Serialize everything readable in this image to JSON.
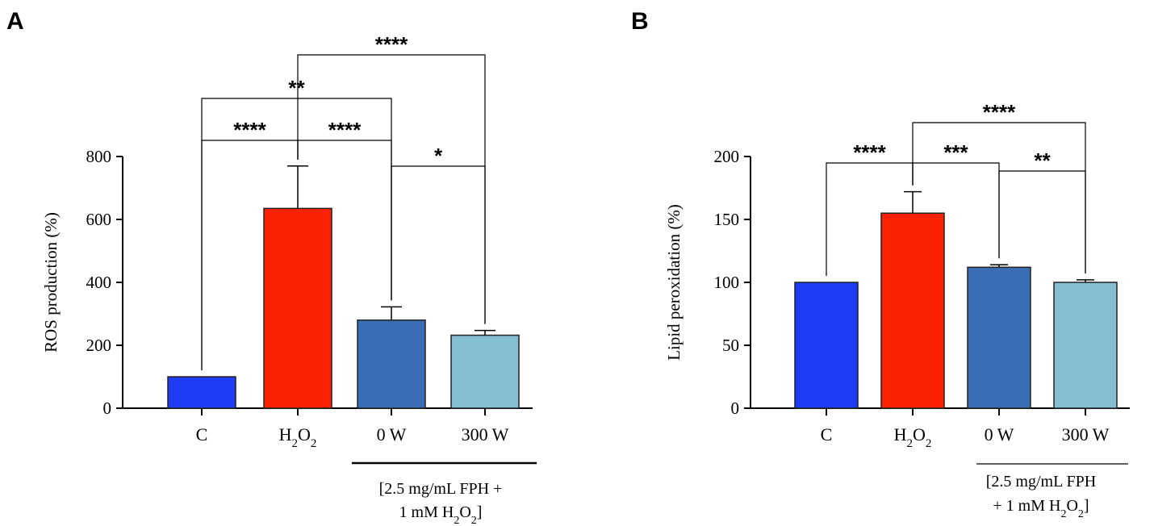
{
  "chart_data": [
    {
      "panel": "A",
      "type": "bar",
      "ylabel": "ROS production (%)",
      "ylim": [
        0,
        800
      ],
      "yticks": [
        0,
        200,
        400,
        600,
        800
      ],
      "categories": [
        {
          "label": "C",
          "main": "C",
          "sub1": "",
          "mid": "",
          "sub2": ""
        },
        {
          "label": "H2O2",
          "main": "H",
          "sub1": "2",
          "mid": "O",
          "sub2": "2"
        },
        {
          "label": "0 W",
          "main": "0 W",
          "sub1": "",
          "mid": "",
          "sub2": ""
        },
        {
          "label": "300 W",
          "main": "300 W",
          "sub1": "",
          "mid": "",
          "sub2": ""
        }
      ],
      "values": [
        100,
        635,
        280,
        232
      ],
      "errors": [
        0,
        135,
        42,
        15
      ],
      "colors": [
        "#1f3cf5",
        "#fa2200",
        "#3b6db5",
        "#85bdd2"
      ],
      "group_note": {
        "line1": "[2.5 mg/mL FPH +",
        "line2_pre": "1 mM H",
        "line2_sub": "2",
        "line2_mid": "O",
        "line2_sub2": "2",
        "line2_post": "]"
      },
      "significance": [
        {
          "from": 0,
          "to": 1,
          "label": "****"
        },
        {
          "from": 1,
          "to": 2,
          "label": "****"
        },
        {
          "from": 0,
          "to": 2,
          "label": "**"
        },
        {
          "from": 2,
          "to": 3,
          "label": "*"
        },
        {
          "from": 1,
          "to": 3,
          "label": "****"
        }
      ]
    },
    {
      "panel": "B",
      "type": "bar",
      "ylabel": "Lipid peroxidation (%)",
      "ylim": [
        0,
        200
      ],
      "yticks": [
        0,
        50,
        100,
        150,
        200
      ],
      "categories": [
        {
          "label": "C",
          "main": "C",
          "sub1": "",
          "mid": "",
          "sub2": ""
        },
        {
          "label": "H2O2",
          "main": "H",
          "sub1": "2",
          "mid": "O",
          "sub2": "2"
        },
        {
          "label": "0 W",
          "main": "0 W",
          "sub1": "",
          "mid": "",
          "sub2": ""
        },
        {
          "label": "300 W",
          "main": "300 W",
          "sub1": "",
          "mid": "",
          "sub2": ""
        }
      ],
      "values": [
        100,
        155,
        112,
        100
      ],
      "errors": [
        0,
        17,
        2,
        2
      ],
      "colors": [
        "#1f3cf5",
        "#fa2200",
        "#3b6db5",
        "#85bdd2"
      ],
      "group_note": {
        "line1": "[2.5 mg/mL FPH",
        "line2_pre": "+ 1 mM H",
        "line2_sub": "2",
        "line2_mid": "O",
        "line2_sub2": "2",
        "line2_post": "]"
      },
      "significance": [
        {
          "from": 0,
          "to": 1,
          "label": "****"
        },
        {
          "from": 1,
          "to": 2,
          "label": "***"
        },
        {
          "from": 2,
          "to": 3,
          "label": "**"
        },
        {
          "from": 1,
          "to": 3,
          "label": "****"
        }
      ]
    }
  ]
}
